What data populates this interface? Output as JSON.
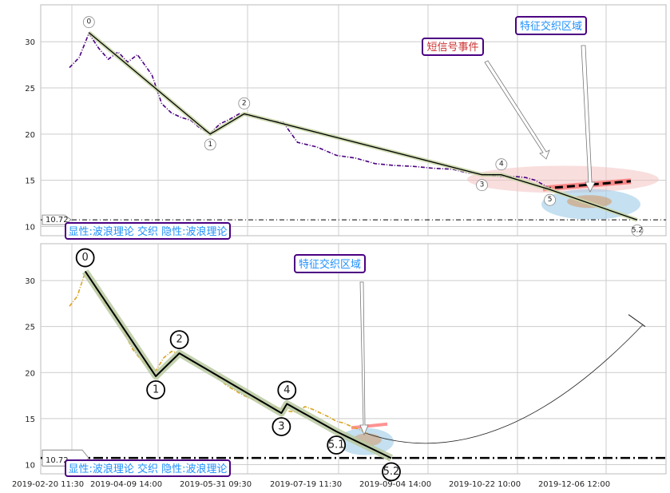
{
  "chart_data": {
    "type": "line",
    "x_ticks": [
      "2019-02-20 11:30",
      "2019-04-09 14:00",
      "2019-05-31 09:30",
      "2019-07-19 11:30",
      "2019-09-04 14:00",
      "2019-10-22 10:00",
      "2019-12-06 12:00"
    ],
    "panels": [
      {
        "ylim": [
          9,
          34
        ],
        "yticks": [
          10,
          15,
          20,
          25,
          30
        ],
        "price_color": "#4b0082",
        "price": [
          [
            0,
            27.2
          ],
          [
            2,
            28.3
          ],
          [
            4,
            30.9
          ],
          [
            6,
            29.3
          ],
          [
            8,
            28.1
          ],
          [
            10,
            28.9
          ],
          [
            12,
            27.8
          ],
          [
            14,
            28.6
          ],
          [
            17,
            26.4
          ],
          [
            19,
            23.3
          ],
          [
            21,
            22.3
          ],
          [
            23,
            21.8
          ],
          [
            25,
            21.5
          ],
          [
            27,
            20.6
          ],
          [
            29,
            20.1
          ],
          [
            31,
            21.1
          ],
          [
            33,
            21.6
          ],
          [
            35,
            22.2
          ],
          [
            38,
            21.9
          ],
          [
            41,
            21.5
          ],
          [
            44,
            21.3
          ],
          [
            47,
            19.1
          ],
          [
            51,
            18.6
          ],
          [
            55,
            17.7
          ],
          [
            59,
            17.4
          ],
          [
            63,
            16.8
          ],
          [
            67,
            16.6
          ],
          [
            71,
            16.5
          ],
          [
            75,
            16.3
          ],
          [
            79,
            16.2
          ],
          [
            82,
            15.8
          ],
          [
            85,
            15.7
          ],
          [
            87,
            15.5
          ],
          [
            90,
            15.4
          ],
          [
            92,
            15.4
          ],
          [
            94,
            15.3
          ],
          [
            96,
            15.0
          ],
          [
            98,
            14.4
          ],
          [
            99,
            14.1
          ]
        ],
        "waves": [
          {
            "label": "0",
            "x": 4,
            "y": 31.0
          },
          {
            "label": "1",
            "x": 29,
            "y": 20.0
          },
          {
            "label": "2",
            "x": 36,
            "y": 22.2
          },
          {
            "label": "3",
            "x": 85,
            "y": 15.6
          },
          {
            "label": "4",
            "x": 89,
            "y": 15.6
          },
          {
            "label": "5",
            "x": 99,
            "y": 14.0
          },
          {
            "label": "5.2",
            "x": 117,
            "y": 10.7
          }
        ],
        "hline": {
          "value": 10.72,
          "label": "10.72"
        }
      },
      {
        "ylim": [
          9,
          34
        ],
        "yticks": [
          10,
          15,
          20,
          25,
          30
        ],
        "price_color": "#daa520",
        "price": [
          [
            0,
            27.2
          ],
          [
            1,
            28.3
          ],
          [
            2,
            30.9
          ],
          [
            3,
            29.7
          ],
          [
            4,
            28.1
          ],
          [
            5,
            27.0
          ],
          [
            6,
            26.2
          ],
          [
            7,
            24.3
          ],
          [
            8,
            22.6
          ],
          [
            9,
            21.5
          ],
          [
            10,
            20.6
          ],
          [
            11,
            20.2
          ],
          [
            12,
            21.6
          ],
          [
            13,
            22.3
          ],
          [
            14,
            22.1
          ],
          [
            15,
            21.5
          ],
          [
            16,
            21.0
          ],
          [
            17,
            20.6
          ],
          [
            18,
            20.1
          ],
          [
            19,
            19.4
          ],
          [
            20,
            18.6
          ],
          [
            21,
            18.1
          ],
          [
            22,
            17.6
          ],
          [
            23,
            17.2
          ],
          [
            24,
            16.9
          ],
          [
            25,
            16.6
          ],
          [
            26,
            16.3
          ],
          [
            27,
            16.1
          ],
          [
            28,
            15.8
          ],
          [
            29,
            15.7
          ],
          [
            30,
            16.3
          ],
          [
            31,
            16.0
          ],
          [
            32,
            15.6
          ],
          [
            33,
            15.2
          ],
          [
            34,
            14.7
          ],
          [
            35,
            14.5
          ],
          [
            36,
            14.1
          ],
          [
            37,
            13.8
          ],
          [
            38,
            13.4
          ]
        ],
        "waves": [
          {
            "label": "0",
            "x": 2,
            "y": 31.0
          },
          {
            "label": "1",
            "x": 11,
            "y": 19.6
          },
          {
            "label": "2",
            "x": 14,
            "y": 22.1
          },
          {
            "label": "3",
            "x": 27,
            "y": 15.6
          },
          {
            "label": "4",
            "x": 27.7,
            "y": 16.6
          },
          {
            "label": "5.1",
            "x": 34,
            "y": 13.6
          },
          {
            "label": "5.2",
            "x": 41,
            "y": 10.7
          }
        ],
        "hline": {
          "value": 10.72,
          "label": "10.72"
        }
      }
    ]
  },
  "annotations": {
    "top_short_signal": "短信号事件",
    "top_feature_zone": "特征交织区域",
    "top_legend": "显性:波浪理论 交织 隐性:波浪理论",
    "bottom_feature_zone": "特征交织区域",
    "bottom_legend": "显性:波浪理论 交织 隐性:波浪理论"
  },
  "colors": {
    "box_border": "#4b0082",
    "box_text_blue": "#1e90ff",
    "box_text_red": "#cd3333",
    "grid": "#cccccc"
  }
}
